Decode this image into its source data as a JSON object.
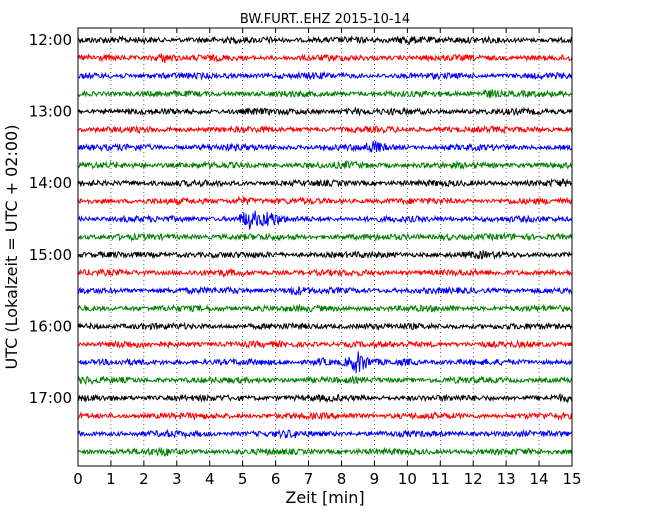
{
  "chart_data": {
    "type": "line",
    "title": "BW.FURT..EHZ 2015-10-14",
    "xlabel": "Zeit  [min]",
    "ylabel": "UTC (Lokalzeit = UTC + 02:00)",
    "xlim": [
      0,
      15
    ],
    "x_ticks": [
      "0",
      "1",
      "2",
      "3",
      "4",
      "5",
      "6",
      "7",
      "8",
      "9",
      "10",
      "11",
      "12",
      "13",
      "14",
      "15"
    ],
    "y_ticks": [
      "12:00",
      "13:00",
      "14:00",
      "15:00",
      "16:00",
      "17:00"
    ],
    "grid": "vertical dotted lines at each minute",
    "trace_colors": [
      "#000000",
      "#ff0000",
      "#0000ff",
      "#008000"
    ],
    "series": [
      {
        "start": "12:00",
        "events": [
          {
            "t": 2.1,
            "a": 1.3
          },
          {
            "t": 5.8,
            "a": 1.4
          },
          {
            "t": 10.0,
            "a": 2.2
          },
          {
            "t": 10.6,
            "a": 1.5
          }
        ]
      },
      {
        "start": "12:15",
        "events": [
          {
            "t": 2.6,
            "a": 2.2
          },
          {
            "t": 13.6,
            "a": 1.2
          }
        ]
      },
      {
        "start": "12:30",
        "events": [
          {
            "t": 1.2,
            "a": 1.2
          },
          {
            "t": 7.2,
            "a": 1.2
          }
        ]
      },
      {
        "start": "12:45",
        "events": [
          {
            "t": 12.5,
            "a": 2.0
          },
          {
            "t": 6.5,
            "a": 1.2
          }
        ]
      },
      {
        "start": "13:00",
        "events": [
          {
            "t": 8.4,
            "a": 1.6
          },
          {
            "t": 5.3,
            "a": 1.3
          }
        ]
      },
      {
        "start": "13:15",
        "events": [
          {
            "t": 11.3,
            "a": 1.3
          }
        ]
      },
      {
        "start": "13:30",
        "events": [
          {
            "t": 9.0,
            "a": 2.4
          },
          {
            "t": 1.9,
            "a": 1.4
          },
          {
            "t": 4.5,
            "a": 1.2
          }
        ]
      },
      {
        "start": "13:45",
        "events": [
          {
            "t": 8.3,
            "a": 1.5
          },
          {
            "t": 2.0,
            "a": 1.2
          }
        ]
      },
      {
        "start": "14:00",
        "events": [
          {
            "t": 1.5,
            "a": 1.2
          },
          {
            "t": 14.6,
            "a": 1.4
          }
        ]
      },
      {
        "start": "14:15",
        "events": [
          {
            "t": 5.0,
            "a": 2.0
          },
          {
            "t": 13.2,
            "a": 1.2
          }
        ]
      },
      {
        "start": "14:30",
        "events": [
          {
            "t": 5.2,
            "a": 4.0
          },
          {
            "t": 5.8,
            "a": 3.2
          },
          {
            "t": 1.5,
            "a": 1.3
          }
        ]
      },
      {
        "start": "14:45",
        "events": [
          {
            "t": 11.2,
            "a": 1.5
          },
          {
            "t": 14.6,
            "a": 1.4
          }
        ]
      },
      {
        "start": "15:00",
        "events": [
          {
            "t": 3.3,
            "a": 1.2
          },
          {
            "t": 12.2,
            "a": 1.4
          }
        ]
      },
      {
        "start": "15:15",
        "events": [
          {
            "t": 4.5,
            "a": 1.2
          },
          {
            "t": 13.3,
            "a": 1.2
          }
        ]
      },
      {
        "start": "15:30",
        "events": [
          {
            "t": 6.6,
            "a": 1.9
          },
          {
            "t": 4.7,
            "a": 1.3
          }
        ]
      },
      {
        "start": "15:45",
        "events": [
          {
            "t": 5.5,
            "a": 1.2
          }
        ]
      },
      {
        "start": "16:00",
        "events": [
          {
            "t": 0.5,
            "a": 1.4
          },
          {
            "t": 8.7,
            "a": 1.2
          }
        ]
      },
      {
        "start": "16:15",
        "events": [
          {
            "t": 1.4,
            "a": 1.5
          },
          {
            "t": 8.4,
            "a": 1.2
          },
          {
            "t": 10.8,
            "a": 1.2
          }
        ]
      },
      {
        "start": "16:30",
        "events": [
          {
            "t": 8.5,
            "a": 4.2
          },
          {
            "t": 7.4,
            "a": 1.8
          },
          {
            "t": 10.0,
            "a": 1.6
          }
        ]
      },
      {
        "start": "16:45",
        "events": [
          {
            "t": 0.2,
            "a": 1.5
          },
          {
            "t": 7.0,
            "a": 1.2
          }
        ]
      },
      {
        "start": "17:00",
        "events": [
          {
            "t": 14.8,
            "a": 1.4
          },
          {
            "t": 7.7,
            "a": 1.2
          }
        ]
      },
      {
        "start": "17:15",
        "events": [
          {
            "t": 8.3,
            "a": 1.3
          }
        ]
      },
      {
        "start": "17:30",
        "events": [
          {
            "t": 6.4,
            "a": 1.5
          },
          {
            "t": 2.8,
            "a": 1.2
          }
        ]
      },
      {
        "start": "17:45",
        "events": [
          {
            "t": 2.6,
            "a": 1.7
          }
        ]
      }
    ]
  }
}
